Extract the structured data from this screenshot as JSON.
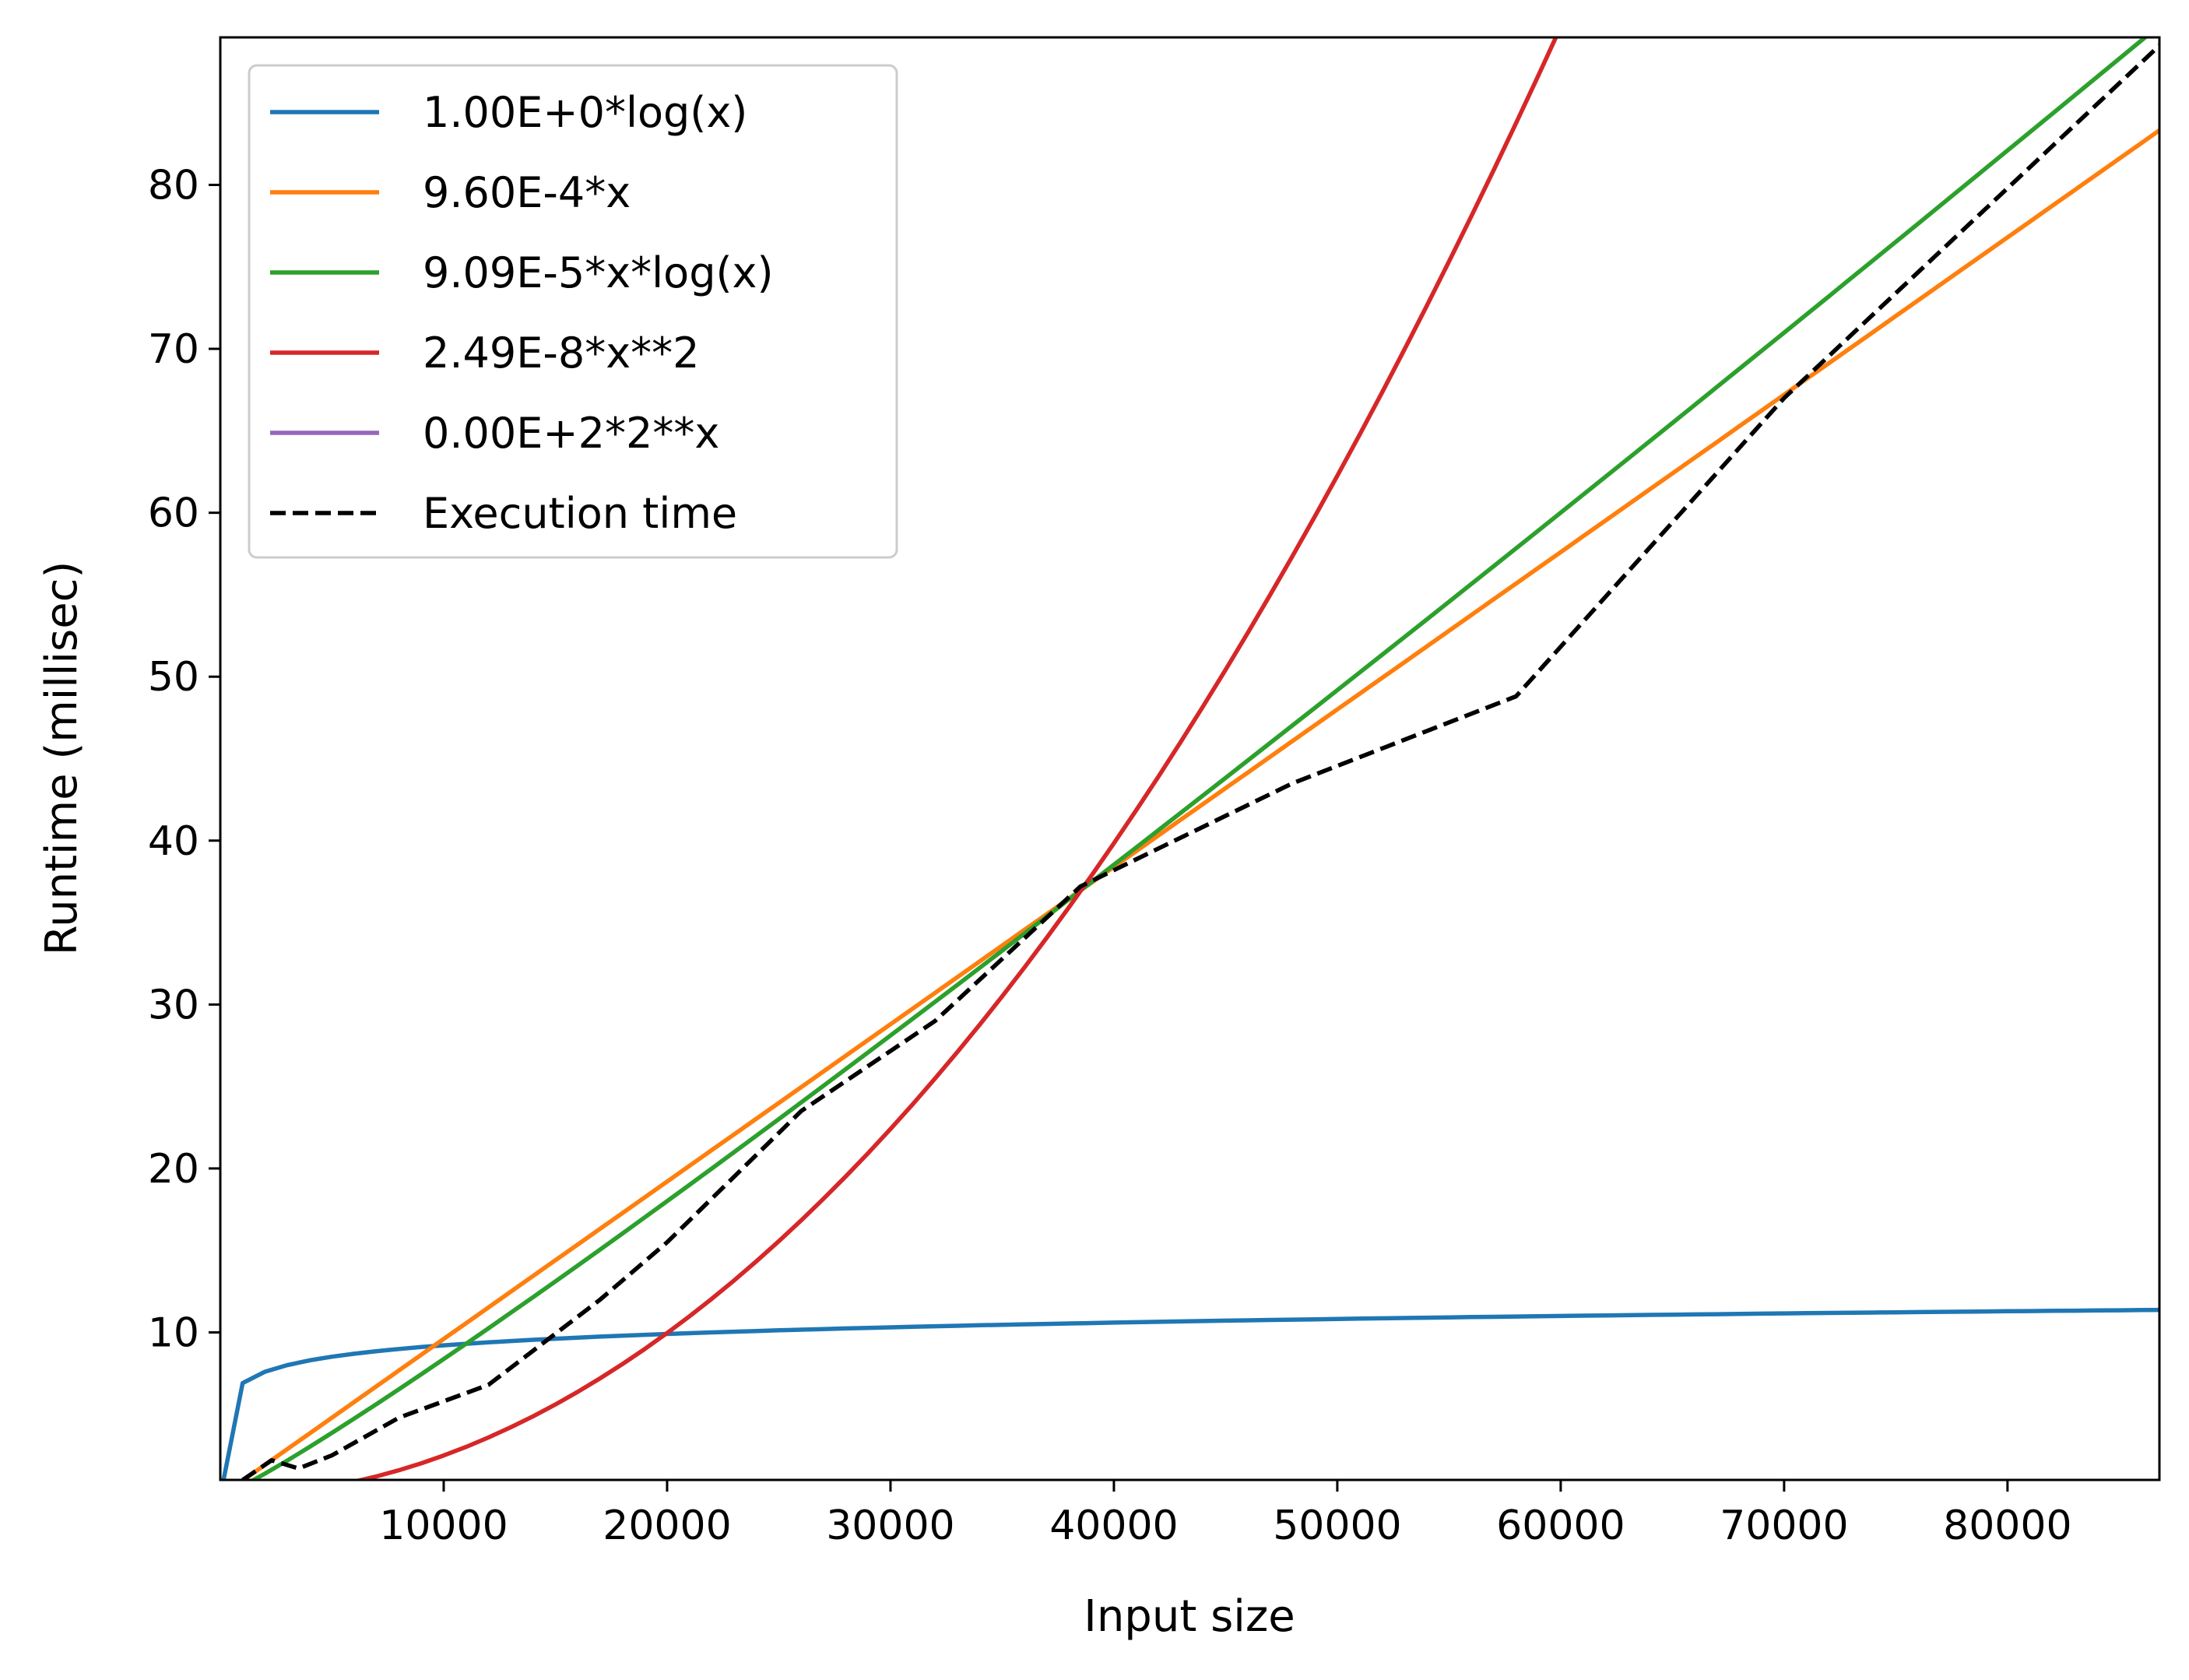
{
  "chart_data": {
    "type": "line",
    "xlabel": "Input size",
    "ylabel": "Runtime (millisec)",
    "xlim": [
      0,
      86800
    ],
    "ylim": [
      1,
      89
    ],
    "xticks": [
      10000,
      20000,
      30000,
      40000,
      50000,
      60000,
      70000,
      80000
    ],
    "yticks": [
      10,
      20,
      30,
      40,
      50,
      60,
      70,
      80
    ],
    "grid": false,
    "legend_position": "top-left",
    "series": [
      {
        "name": "1.00E+0*log(x)",
        "formula": "log",
        "coef": 1.0,
        "color": "#1f77b4",
        "dash": "solid"
      },
      {
        "name": "9.60E-4*x",
        "formula": "linear",
        "coef": 0.00096,
        "color": "#ff7f0e",
        "dash": "solid"
      },
      {
        "name": "9.09E-5*x*log(x)",
        "formula": "nlogn",
        "coef": 9.09e-05,
        "color": "#2ca02c",
        "dash": "solid"
      },
      {
        "name": "2.49E-8*x**2",
        "formula": "quadratic",
        "coef": 2.49e-08,
        "color": "#d62728",
        "dash": "solid"
      },
      {
        "name": "0.00E+2*2**x",
        "formula": "exponential",
        "coef": 0,
        "color": "#9467bd",
        "dash": "solid"
      },
      {
        "name": "Execution time",
        "color": "#000000",
        "dash": "dashed",
        "x": [
          1000,
          2300,
          3500,
          5000,
          8000,
          12000,
          17000,
          20000,
          26000,
          32000,
          38500,
          48000,
          58000,
          70000,
          86800
        ],
        "y": [
          1.0,
          2.2,
          1.7,
          2.5,
          4.8,
          6.8,
          12.0,
          15.5,
          23.5,
          29.0,
          37.2,
          43.5,
          48.8,
          67.0,
          88.5
        ]
      }
    ]
  }
}
